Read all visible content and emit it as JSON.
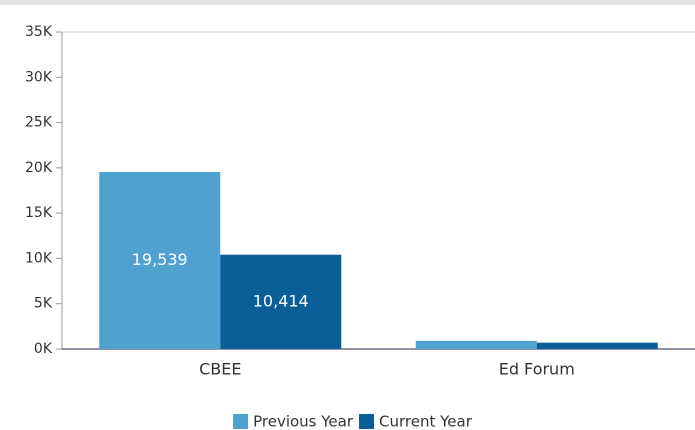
{
  "chart_data": {
    "type": "bar",
    "categories": [
      "CBEE",
      "Ed Forum"
    ],
    "series": [
      {
        "name": "Previous Year",
        "color": "#4fa1d0",
        "values": [
          19539,
          900
        ],
        "value_labels": [
          "19,539",
          null
        ]
      },
      {
        "name": "Current Year",
        "color": "#0b5f98",
        "values": [
          10414,
          700
        ],
        "value_labels": [
          "10,414",
          null
        ]
      }
    ],
    "ylim": [
      0,
      35000
    ],
    "yticks": [
      {
        "value": 0,
        "label": "0K"
      },
      {
        "value": 5000,
        "label": "5K"
      },
      {
        "value": 10000,
        "label": "10K"
      },
      {
        "value": 15000,
        "label": "15K"
      },
      {
        "value": 20000,
        "label": "20K"
      },
      {
        "value": 25000,
        "label": "25K"
      },
      {
        "value": 30000,
        "label": "30K"
      },
      {
        "value": 35000,
        "label": "35K"
      }
    ],
    "legend": "bottom"
  }
}
